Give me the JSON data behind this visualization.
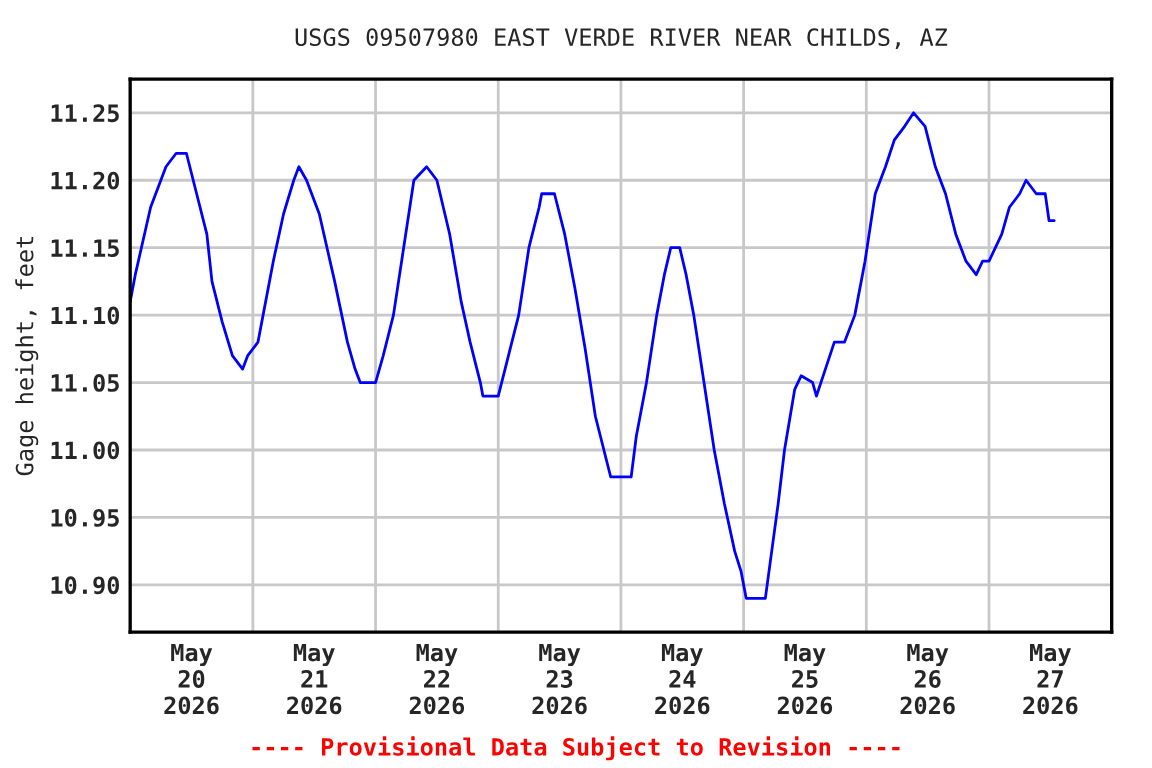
{
  "chart_data": {
    "type": "line",
    "title": "USGS 09507980 EAST VERDE RIVER NEAR CHILDS, AZ",
    "ylabel": "Gage height, feet",
    "annotations": [
      "---- Provisional Data Subject to Revision ----"
    ],
    "grid": true,
    "marker": "none",
    "line_style": "solid",
    "xlim": [
      "2026-05-20T00:00",
      "2026-05-28T00:00"
    ],
    "xticks": [
      {
        "value": "2026-05-20T12:00",
        "label": "May\n20\n2026"
      },
      {
        "value": "2026-05-21T00:00",
        "label": null
      },
      {
        "value": "2026-05-21T12:00",
        "label": "May\n21\n2026"
      },
      {
        "value": "2026-05-22T00:00",
        "label": null
      },
      {
        "value": "2026-05-22T12:00",
        "label": "May\n22\n2026"
      },
      {
        "value": "2026-05-23T00:00",
        "label": null
      },
      {
        "value": "2026-05-23T12:00",
        "label": "May\n23\n2026"
      },
      {
        "value": "2026-05-24T00:00",
        "label": null
      },
      {
        "value": "2026-05-24T12:00",
        "label": "May\n24\n2026"
      },
      {
        "value": "2026-05-25T00:00",
        "label": null
      },
      {
        "value": "2026-05-25T12:00",
        "label": "May\n25\n2026"
      },
      {
        "value": "2026-05-26T00:00",
        "label": null
      },
      {
        "value": "2026-05-26T12:00",
        "label": "May\n26\n2026"
      },
      {
        "value": "2026-05-27T00:00",
        "label": null
      },
      {
        "value": "2026-05-27T12:00",
        "label": "May\n27\n2026"
      }
    ],
    "ylim": [
      10.865,
      11.275
    ],
    "yticks": [
      {
        "value": 10.9,
        "label": "10.90"
      },
      {
        "value": 10.95,
        "label": "10.95"
      },
      {
        "value": 11.0,
        "label": "11.00"
      },
      {
        "value": 11.05,
        "label": "11.05"
      },
      {
        "value": 11.1,
        "label": "11.10"
      },
      {
        "value": 11.15,
        "label": "11.15"
      },
      {
        "value": 11.2,
        "label": "11.20"
      },
      {
        "value": 11.25,
        "label": "11.25"
      }
    ],
    "series": [
      {
        "color": "#0000ff",
        "x": [
          "2026-05-20T00:00",
          "2026-05-20T01:00",
          "2026-05-20T04:00",
          "2026-05-20T07:00",
          "2026-05-20T09:00",
          "2026-05-20T11:00",
          "2026-05-20T13:00",
          "2026-05-20T15:00",
          "2026-05-20T16:00",
          "2026-05-20T18:00",
          "2026-05-20T20:00",
          "2026-05-20T22:00",
          "2026-05-20T23:00",
          "2026-05-21T01:00",
          "2026-05-21T02:00",
          "2026-05-21T04:00",
          "2026-05-21T06:00",
          "2026-05-21T08:00",
          "2026-05-21T09:00",
          "2026-05-21T10:30",
          "2026-05-21T13:00",
          "2026-05-21T16:00",
          "2026-05-21T18:30",
          "2026-05-21T20:00",
          "2026-05-21T21:00",
          "2026-05-22T00:00",
          "2026-05-22T01:30",
          "2026-05-22T03:30",
          "2026-05-22T05:30",
          "2026-05-22T07:30",
          "2026-05-22T10:00",
          "2026-05-22T12:00",
          "2026-05-22T14:30",
          "2026-05-22T16:45",
          "2026-05-22T18:30",
          "2026-05-22T20:30",
          "2026-05-22T21:00",
          "2026-05-23T00:00",
          "2026-05-23T02:00",
          "2026-05-23T04:00",
          "2026-05-23T06:00",
          "2026-05-23T08:00",
          "2026-05-23T08:30",
          "2026-05-23T11:00",
          "2026-05-23T13:00",
          "2026-05-23T15:00",
          "2026-05-23T17:00",
          "2026-05-23T19:00",
          "2026-05-23T21:00",
          "2026-05-23T22:00",
          "2026-05-24T02:00",
          "2026-05-24T03:00",
          "2026-05-24T05:00",
          "2026-05-24T07:00",
          "2026-05-24T08:30",
          "2026-05-24T09:45",
          "2026-05-24T11:30",
          "2026-05-24T12:45",
          "2026-05-24T14:15",
          "2026-05-24T16:15",
          "2026-05-24T18:15",
          "2026-05-24T20:15",
          "2026-05-24T22:15",
          "2026-05-24T23:30",
          "2026-05-25T00:30",
          "2026-05-25T04:15",
          "2026-05-25T05:30",
          "2026-05-25T06:45",
          "2026-05-25T08:00",
          "2026-05-25T10:00",
          "2026-05-25T11:15",
          "2026-05-25T13:30",
          "2026-05-25T14:15",
          "2026-05-25T16:00",
          "2026-05-25T17:45",
          "2026-05-25T19:45",
          "2026-05-25T21:45",
          "2026-05-25T23:45",
          "2026-05-26T01:45",
          "2026-05-26T03:45",
          "2026-05-26T05:30",
          "2026-05-26T07:30",
          "2026-05-26T09:15",
          "2026-05-26T11:30",
          "2026-05-26T13:30",
          "2026-05-26T15:30",
          "2026-05-26T17:30",
          "2026-05-26T19:30",
          "2026-05-26T21:30",
          "2026-05-26T22:45",
          "2026-05-27T00:00",
          "2026-05-27T02:30",
          "2026-05-27T04:00",
          "2026-05-27T06:00",
          "2026-05-27T07:15",
          "2026-05-27T09:15",
          "2026-05-27T11:00",
          "2026-05-27T11:45",
          "2026-05-27T12:45"
        ],
        "values": [
          11.11,
          11.13,
          11.18,
          11.21,
          11.22,
          11.22,
          11.19,
          11.16,
          11.125,
          11.095,
          11.07,
          11.06,
          11.07,
          11.08,
          11.1,
          11.14,
          11.175,
          11.2,
          11.21,
          11.2,
          11.175,
          11.125,
          11.08,
          11.06,
          11.05,
          11.05,
          11.07,
          11.1,
          11.15,
          11.2,
          11.21,
          11.2,
          11.16,
          11.11,
          11.08,
          11.05,
          11.04,
          11.04,
          11.07,
          11.1,
          11.15,
          11.18,
          11.19,
          11.19,
          11.16,
          11.12,
          11.075,
          11.025,
          10.995,
          10.98,
          10.98,
          11.01,
          11.05,
          11.1,
          11.13,
          11.15,
          11.15,
          11.13,
          11.1,
          11.05,
          11.0,
          10.96,
          10.925,
          10.91,
          10.89,
          10.89,
          10.925,
          10.96,
          11.0,
          11.045,
          11.055,
          11.05,
          11.04,
          11.06,
          11.08,
          11.08,
          11.1,
          11.14,
          11.19,
          11.21,
          11.23,
          11.24,
          11.25,
          11.24,
          11.21,
          11.19,
          11.16,
          11.14,
          11.13,
          11.14,
          11.14,
          11.16,
          11.18,
          11.19,
          11.2,
          11.19,
          11.19,
          11.17,
          11.17
        ]
      }
    ]
  }
}
